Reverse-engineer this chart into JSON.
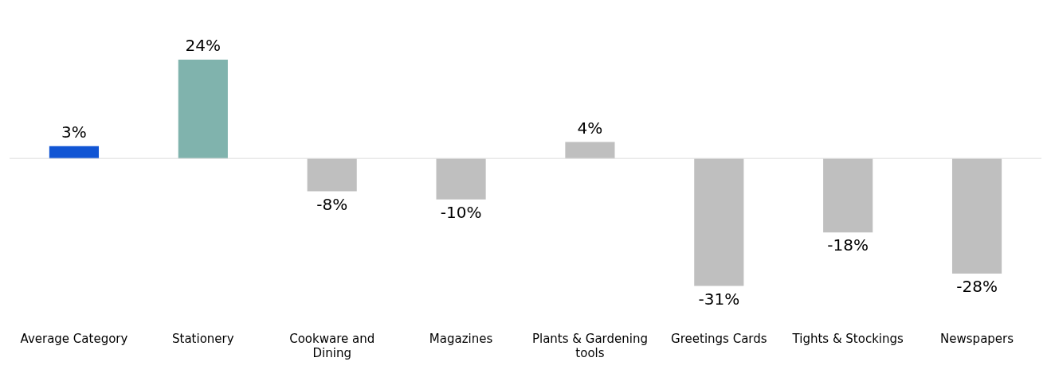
{
  "chart_data": {
    "type": "bar",
    "categories": [
      "Average Category",
      "Stationery",
      "Cookware and Dining",
      "Magazines",
      "Plants & Gardening tools",
      "Greetings Cards",
      "Tights & Stockings",
      "Newspapers"
    ],
    "values": [
      3,
      24,
      -8,
      -10,
      4,
      -31,
      -18,
      -28
    ],
    "colors": [
      "#1155d4",
      "#80b3ad",
      "#bfbfbf",
      "#bfbfbf",
      "#bfbfbf",
      "#bfbfbf",
      "#bfbfbf",
      "#bfbfbf"
    ],
    "value_labels": [
      "3%",
      "24%",
      "-8%",
      "-10%",
      "4%",
      "-31%",
      "-18%",
      "-28%"
    ],
    "grid": false,
    "legend": false
  }
}
